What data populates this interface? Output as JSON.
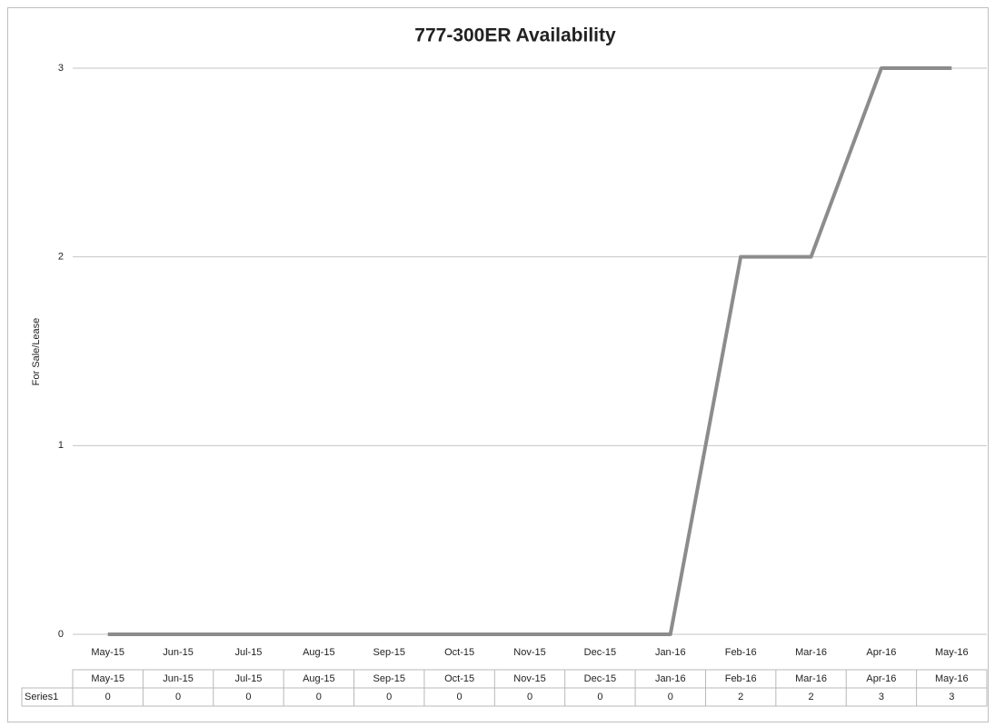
{
  "chart_data": {
    "type": "line",
    "title": "777-300ER Availability",
    "y_label": "For Sale/Lease",
    "categories": [
      "May-15",
      "Jun-15",
      "Jul-15",
      "Aug-15",
      "Sep-15",
      "Oct-15",
      "Nov-15",
      "Dec-15",
      "Jan-16",
      "Feb-16",
      "Mar-16",
      "Apr-16",
      "May-16"
    ],
    "series": [
      {
        "name": "Series1",
        "color": "#8c8c8c",
        "values": [
          0,
          0,
          0,
          0,
          0,
          0,
          0,
          0,
          0,
          2,
          2,
          3,
          3
        ]
      }
    ],
    "ylim": [
      0,
      3
    ],
    "yticks": [
      0,
      1,
      2,
      3
    ],
    "grid": true,
    "data_table": true
  }
}
